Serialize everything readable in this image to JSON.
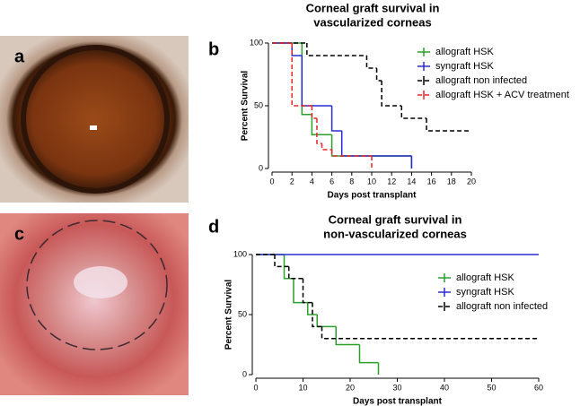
{
  "image_panels": [
    {
      "label": "a"
    },
    {
      "label": "c"
    }
  ],
  "chart_data": [
    {
      "type": "line",
      "step": true,
      "panel_label": "b",
      "title": [
        "Corneal graft survival in",
        "vascularized corneas"
      ],
      "xlabel": "Days post transplant",
      "ylabel": "Percent Survival",
      "xlim": [
        0,
        20
      ],
      "xticks": [
        0,
        2,
        4,
        6,
        8,
        10,
        12,
        14,
        16,
        18,
        20
      ],
      "ylim": [
        0,
        100
      ],
      "yticks": [
        0,
        50,
        100
      ],
      "grid": false,
      "series": [
        {
          "name": "allograft HSK",
          "color": "#2ca02c",
          "dashed": false,
          "x": [
            0,
            3,
            4,
            6,
            14
          ],
          "values": [
            100,
            43,
            27,
            10,
            0
          ]
        },
        {
          "name": "syngraft HSK",
          "color": "#2a2ad0",
          "dashed": false,
          "x": [
            0,
            2,
            3,
            6,
            7,
            14
          ],
          "values": [
            100,
            90,
            50,
            30,
            10,
            0
          ]
        },
        {
          "name": "allograft non infected",
          "color": "#000000",
          "dashed": true,
          "x": [
            0,
            3.5,
            9.5,
            10.5,
            11,
            13,
            15.5,
            20
          ],
          "values": [
            100,
            90,
            80,
            70,
            50,
            40,
            30,
            30
          ]
        },
        {
          "name": "allograft HSK + ACV treatment",
          "color": "#e8262a",
          "dashed": true,
          "x": [
            0,
            2,
            4,
            4.5,
            5,
            6,
            10
          ],
          "values": [
            100,
            50,
            40,
            20,
            15,
            10,
            0
          ]
        }
      ]
    },
    {
      "type": "line",
      "step": true,
      "panel_label": "d",
      "title": [
        "Corneal graft survival in",
        "non-vascularized corneas"
      ],
      "xlabel": "Days post transplant",
      "ylabel": "Percent Survival",
      "xlim": [
        0,
        60
      ],
      "xticks": [
        0,
        10,
        20,
        30,
        40,
        50,
        60
      ],
      "ylim": [
        0,
        100
      ],
      "yticks": [
        0,
        50,
        100
      ],
      "grid": false,
      "series": [
        {
          "name": "allograft HSK",
          "color": "#2ca02c",
          "dashed": false,
          "x": [
            0,
            6,
            8,
            11,
            13,
            17,
            22,
            26
          ],
          "values": [
            100,
            80,
            60,
            50,
            40,
            25,
            10,
            0
          ]
        },
        {
          "name": "syngraft HSK",
          "color": "#2a2ad0",
          "dashed": false,
          "x": [
            0,
            60
          ],
          "values": [
            100,
            100
          ]
        },
        {
          "name": "allograft non infected",
          "color": "#000000",
          "dashed": true,
          "x": [
            0,
            4,
            7,
            10,
            12,
            14,
            60
          ],
          "values": [
            100,
            90,
            80,
            60,
            40,
            30,
            30
          ]
        }
      ]
    }
  ]
}
